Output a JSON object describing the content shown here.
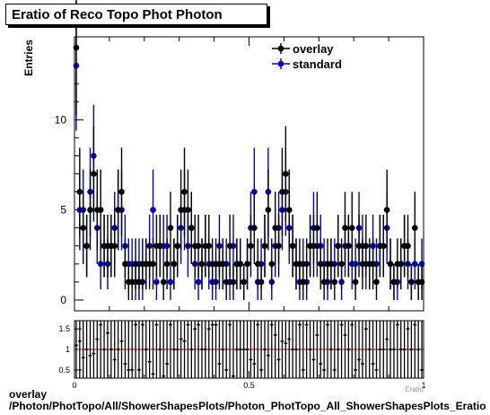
{
  "chart_data": [
    {
      "type": "scatter",
      "title": "Eratio of Reco Topo Phot Photon",
      "ylabel": "Entries",
      "xlabel": "",
      "xlim": [
        0,
        1
      ],
      "ylim": [
        -0.6,
        14.6
      ],
      "yticks": [
        "0",
        "5",
        "10"
      ],
      "legend_position": "top-right",
      "series": [
        {
          "name": "overlay",
          "color": "#000000",
          "x": [
            0.005,
            0.015,
            0.025,
            0.035,
            0.045,
            0.055,
            0.065,
            0.075,
            0.085,
            0.095,
            0.105,
            0.115,
            0.125,
            0.135,
            0.145,
            0.155,
            0.165,
            0.175,
            0.185,
            0.195,
            0.205,
            0.215,
            0.225,
            0.235,
            0.245,
            0.255,
            0.265,
            0.275,
            0.285,
            0.295,
            0.305,
            0.315,
            0.325,
            0.335,
            0.345,
            0.355,
            0.365,
            0.375,
            0.385,
            0.395,
            0.405,
            0.415,
            0.425,
            0.435,
            0.445,
            0.455,
            0.465,
            0.475,
            0.485,
            0.495,
            0.505,
            0.515,
            0.525,
            0.535,
            0.545,
            0.555,
            0.565,
            0.575,
            0.585,
            0.595,
            0.605,
            0.615,
            0.625,
            0.635,
            0.645,
            0.655,
            0.665,
            0.675,
            0.685,
            0.695,
            0.705,
            0.715,
            0.725,
            0.735,
            0.745,
            0.755,
            0.765,
            0.775,
            0.785,
            0.795,
            0.805,
            0.815,
            0.825,
            0.835,
            0.845,
            0.855,
            0.865,
            0.875,
            0.885,
            0.895,
            0.905,
            0.915,
            0.925,
            0.935,
            0.945,
            0.955,
            0.965,
            0.975,
            0.985,
            0.995
          ],
          "y": [
            14,
            6,
            4,
            3,
            5,
            7,
            5,
            5,
            3,
            3,
            3,
            3,
            5,
            6,
            2,
            1,
            1,
            2,
            1,
            2,
            2,
            2,
            2,
            3,
            3,
            1,
            2,
            4,
            2,
            3,
            5,
            6,
            5,
            4,
            3,
            3,
            2,
            3,
            3,
            2,
            2,
            2,
            2,
            1,
            3,
            1,
            2,
            2,
            1,
            2,
            3,
            4,
            2,
            1,
            3,
            5,
            2,
            4,
            3,
            6,
            7,
            5,
            3,
            2,
            2,
            1,
            2,
            3,
            3,
            4,
            2,
            1,
            2,
            2,
            1,
            3,
            2,
            4,
            3,
            4,
            1,
            3,
            2,
            3,
            2,
            2,
            1,
            3,
            3,
            5,
            2,
            1,
            2,
            2,
            3,
            3,
            1,
            4,
            1,
            1
          ]
        },
        {
          "name": "standard",
          "color": "#0000cc",
          "x": [
            0.005,
            0.015,
            0.025,
            0.035,
            0.045,
            0.055,
            0.065,
            0.075,
            0.085,
            0.095,
            0.105,
            0.115,
            0.125,
            0.135,
            0.145,
            0.155,
            0.165,
            0.175,
            0.185,
            0.195,
            0.205,
            0.215,
            0.225,
            0.235,
            0.245,
            0.255,
            0.265,
            0.275,
            0.285,
            0.295,
            0.305,
            0.315,
            0.325,
            0.335,
            0.345,
            0.355,
            0.365,
            0.375,
            0.385,
            0.395,
            0.405,
            0.415,
            0.425,
            0.435,
            0.445,
            0.455,
            0.465,
            0.475,
            0.485,
            0.495,
            0.505,
            0.515,
            0.525,
            0.535,
            0.545,
            0.555,
            0.565,
            0.575,
            0.585,
            0.595,
            0.605,
            0.615,
            0.625,
            0.635,
            0.645,
            0.655,
            0.665,
            0.675,
            0.685,
            0.695,
            0.705,
            0.715,
            0.725,
            0.735,
            0.745,
            0.755,
            0.765,
            0.775,
            0.785,
            0.795,
            0.805,
            0.815,
            0.825,
            0.835,
            0.845,
            0.855,
            0.865,
            0.875,
            0.885,
            0.895,
            0.905,
            0.915,
            0.925,
            0.935,
            0.945,
            0.955,
            0.965,
            0.975,
            0.985,
            0.995
          ],
          "y": [
            13,
            5,
            5,
            3,
            6,
            8,
            4,
            2,
            3,
            2,
            3,
            4,
            5,
            5,
            3,
            2,
            2,
            1,
            2,
            1,
            2,
            3,
            5,
            1,
            3,
            3,
            3,
            1,
            2,
            3,
            4,
            5,
            3,
            4,
            2,
            1,
            2,
            3,
            2,
            1,
            1,
            3,
            2,
            2,
            1,
            3,
            2,
            2,
            1,
            2,
            4,
            6,
            1,
            2,
            3,
            6,
            1,
            3,
            4,
            5,
            6,
            4,
            3,
            2,
            1,
            2,
            1,
            3,
            4,
            3,
            3,
            2,
            1,
            2,
            2,
            3,
            1,
            3,
            3,
            2,
            2,
            4,
            3,
            2,
            2,
            3,
            2,
            3,
            3,
            4,
            2,
            1,
            1,
            2,
            3,
            2,
            1,
            2,
            1,
            2
          ]
        }
      ]
    },
    {
      "type": "scatter",
      "title": "",
      "xlabel": "Eratio",
      "ylabel": "",
      "xlim": [
        0,
        1
      ],
      "ylim": [
        0.3,
        1.7
      ],
      "xticks": [
        "0",
        "0.5",
        "1"
      ],
      "yticks": [
        "0.5",
        "1",
        "1.5"
      ],
      "reference_line": 1.0,
      "series": [
        {
          "name": "",
          "color": "#000000",
          "x": [
            0.005,
            0.015,
            0.025,
            0.035,
            0.045,
            0.055,
            0.065,
            0.075,
            0.085,
            0.095,
            0.105,
            0.115,
            0.125,
            0.135,
            0.145,
            0.155,
            0.165,
            0.175,
            0.185,
            0.195,
            0.205,
            0.215,
            0.225,
            0.235,
            0.245,
            0.255,
            0.265,
            0.275,
            0.285,
            0.295,
            0.305,
            0.315,
            0.325,
            0.335,
            0.345,
            0.355,
            0.365,
            0.375,
            0.385,
            0.395,
            0.405,
            0.415,
            0.425,
            0.435,
            0.445,
            0.455,
            0.465,
            0.475,
            0.485,
            0.495,
            0.505,
            0.515,
            0.525,
            0.535,
            0.545,
            0.555,
            0.565,
            0.575,
            0.585,
            0.595,
            0.605,
            0.615,
            0.625,
            0.635,
            0.645,
            0.655,
            0.665,
            0.675,
            0.685,
            0.695,
            0.705,
            0.715,
            0.725,
            0.735,
            0.745,
            0.755,
            0.765,
            0.775,
            0.785,
            0.795,
            0.805,
            0.815,
            0.825,
            0.835,
            0.845,
            0.855,
            0.865,
            0.875,
            0.885,
            0.895,
            0.905,
            0.915,
            0.925,
            0.935,
            0.945,
            0.955,
            0.965,
            0.975,
            0.985,
            0.995
          ],
          "y": [
            1.1,
            1.2,
            0.8,
            1.0,
            0.85,
            0.9,
            1.25,
            1.6,
            1.0,
            1.4,
            1.0,
            0.75,
            1.0,
            1.2,
            0.65,
            0.5,
            0.5,
            1.6,
            0.5,
            1.6,
            1.0,
            0.7,
            0.4,
            1.6,
            1.0,
            0.35,
            0.65,
            1.6,
            1.0,
            1.0,
            1.25,
            1.2,
            1.6,
            1.0,
            1.5,
            1.6,
            1.0,
            1.0,
            1.5,
            1.6,
            1.6,
            0.65,
            1.0,
            0.5,
            1.6,
            0.35,
            1.0,
            1.0,
            1.0,
            1.0,
            0.75,
            0.65,
            1.6,
            0.5,
            1.0,
            0.85,
            1.6,
            1.35,
            0.75,
            1.2,
            1.15,
            1.25,
            1.0,
            1.0,
            1.6,
            0.5,
            1.6,
            1.0,
            0.75,
            1.35,
            0.65,
            0.5,
            1.6,
            1.0,
            0.5,
            1.0,
            1.6,
            1.35,
            1.0,
            1.6,
            0.5,
            0.75,
            0.65,
            1.5,
            1.0,
            0.65,
            0.5,
            1.0,
            1.0,
            1.25,
            1.0,
            1.0,
            1.6,
            1.0,
            1.0,
            1.5,
            1.0,
            1.6,
            1.0,
            0.5
          ]
        }
      ]
    }
  ],
  "footer": {
    "line1": "overlay",
    "line2": "/Photon/PhotTopo/All/ShowerShapesPlots/Photon_PhotTopo_All_ShowerShapesPlots_Eratio"
  }
}
